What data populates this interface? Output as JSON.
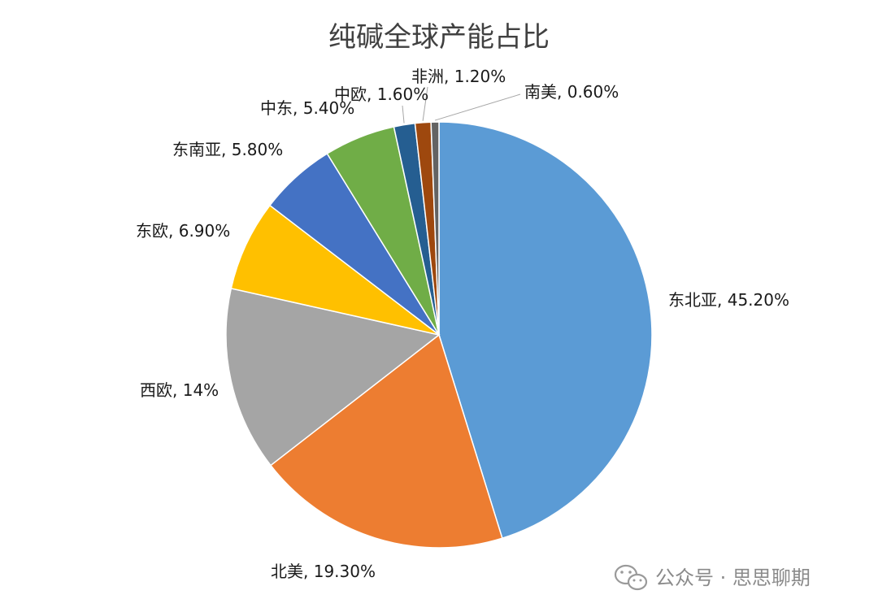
{
  "chart_data": {
    "type": "pie",
    "title": "纯碱全球产能占比",
    "slices": [
      {
        "category": "东北亚",
        "value": 45.2,
        "label": "东北亚, 45.20%",
        "color": "#5b9bd5"
      },
      {
        "category": "北美",
        "value": 19.3,
        "label": "北美, 19.30%",
        "color": "#ed7d31"
      },
      {
        "category": "西欧",
        "value": 14,
        "label": "西欧, 14%",
        "color": "#a5a5a5"
      },
      {
        "category": "东欧",
        "value": 6.9,
        "label": "东欧, 6.90%",
        "color": "#ffc000"
      },
      {
        "category": "东南亚",
        "value": 5.8,
        "label": "东南亚, 5.80%",
        "color": "#4472c4"
      },
      {
        "category": "中东",
        "value": 5.4,
        "label": "中东, 5.40%",
        "color": "#70ad47"
      },
      {
        "category": "中欧",
        "value": 1.6,
        "label": "中欧, 1.60%",
        "color": "#255e91"
      },
      {
        "category": "非洲",
        "value": 1.2,
        "label": "非洲, 1.20%",
        "color": "#9e480e"
      },
      {
        "category": "南美",
        "value": 0.6,
        "label": "南美, 0.60%",
        "color": "#636363"
      }
    ],
    "start_angle": "12 o'clock",
    "direction": "clockwise",
    "legend": "none",
    "data_labels": "outside"
  },
  "watermark": {
    "text": "公众号 · 思思聊期",
    "icon": "wechat-icon"
  }
}
